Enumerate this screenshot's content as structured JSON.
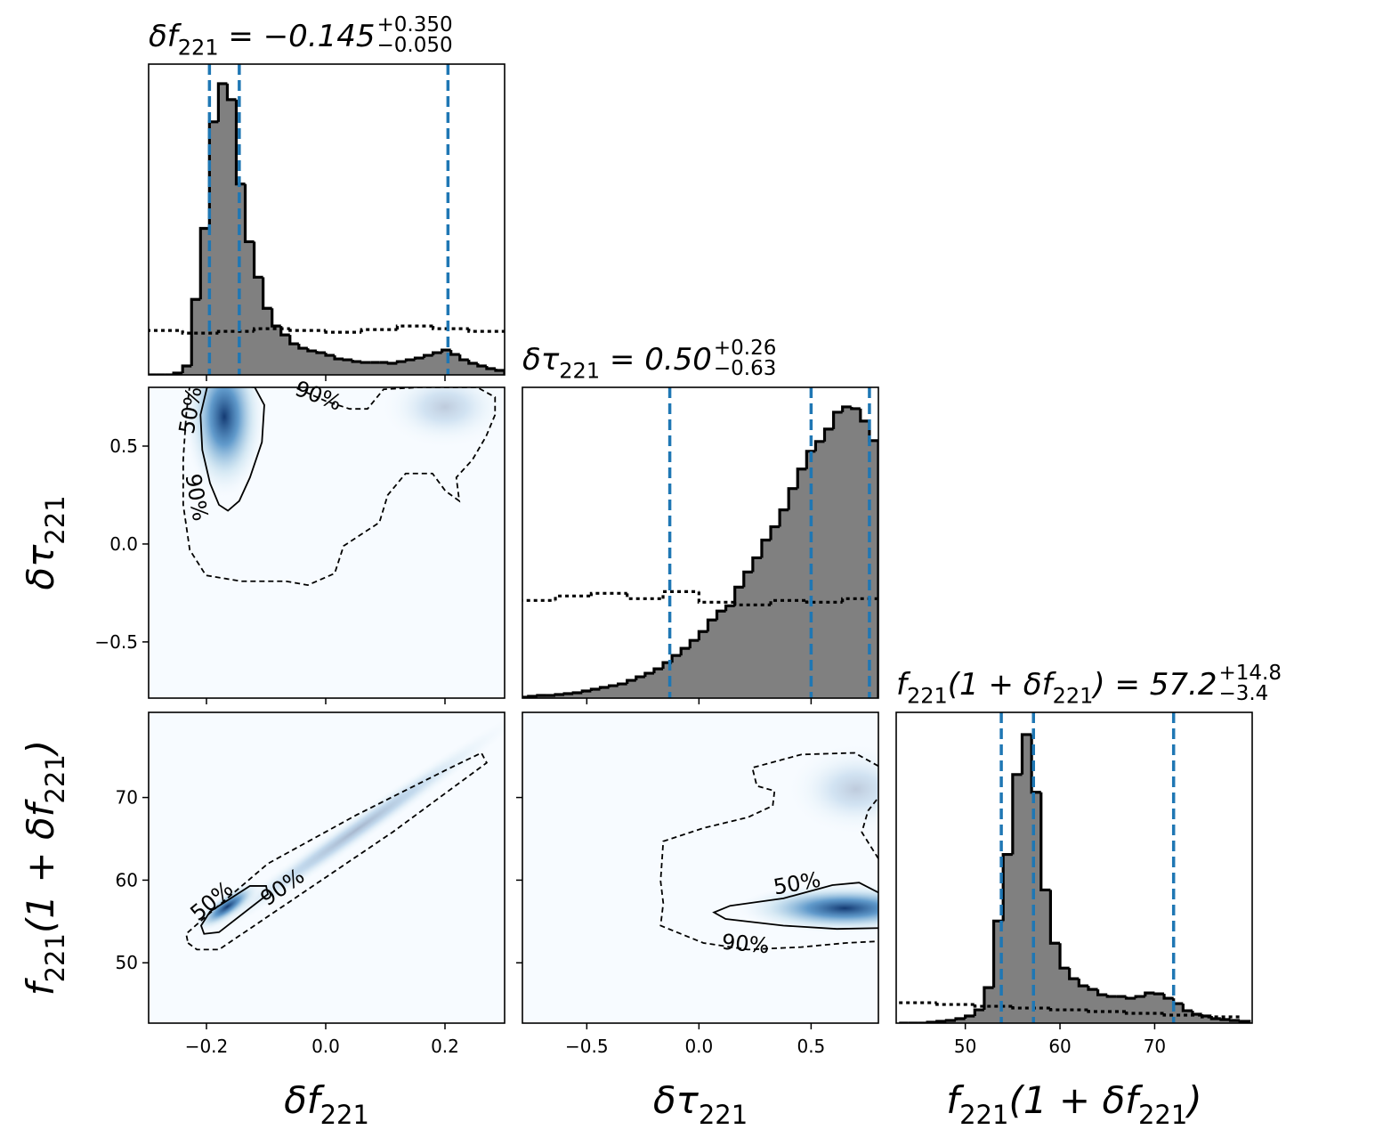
{
  "chart_data": {
    "type": "corner",
    "hist_color": "#808080",
    "quantile_color": "#1f77b4",
    "density_color": "#08519c",
    "hist_ylim": [
      0,
      350
    ],
    "parameters": [
      {
        "label": [
          "δf",
          "221"
        ],
        "title": {
          "parts": [
            "δf",
            "221",
            " = −0.145"
          ],
          "upper": "+0.350",
          "lower": "−0.050"
        },
        "lim": [
          -0.297,
          0.3
        ],
        "ticks": [
          {
            "value": -0.2,
            "label": "−0.2"
          },
          {
            "value": 0,
            "label": "0.0"
          },
          {
            "value": 0.2,
            "label": "0.2"
          }
        ],
        "quantiles": [
          -0.195,
          -0.145,
          0.205
        ],
        "hist": {
          "bins": [
            -0.3,
            -0.285,
            -0.27,
            -0.255,
            -0.24,
            -0.225,
            -0.21,
            -0.195,
            -0.18,
            -0.165,
            -0.15,
            -0.135,
            -0.12,
            -0.105,
            -0.09,
            -0.075,
            -0.06,
            -0.045,
            -0.03,
            -0.015,
            0,
            0.015,
            0.03,
            0.045,
            0.06,
            0.075,
            0.09,
            0.105,
            0.12,
            0.135,
            0.15,
            0.165,
            0.18,
            0.195,
            0.21,
            0.225,
            0.24,
            0.255,
            0.27,
            0.285,
            0.3
          ],
          "values": [
            0,
            0,
            0,
            2,
            10,
            85,
            165,
            285,
            328,
            310,
            215,
            150,
            110,
            75,
            55,
            45,
            35,
            30,
            27,
            25,
            22,
            18,
            17,
            15,
            14,
            14,
            14,
            13,
            15,
            17,
            19,
            22,
            25,
            28,
            23,
            17,
            13,
            10,
            7,
            5
          ]
        },
        "prior": {
          "bins": [
            -0.3,
            -0.24,
            -0.18,
            -0.12,
            -0.06,
            0,
            0.06,
            0.12,
            0.18,
            0.24,
            0.3
          ],
          "values": [
            50,
            47,
            49,
            52,
            50,
            48,
            51,
            55,
            52,
            49
          ]
        }
      },
      {
        "label": [
          "δτ",
          "221"
        ],
        "title": {
          "parts": [
            "δτ",
            "221",
            " = 0.50"
          ],
          "upper": "+0.26",
          "lower": "−0.63"
        },
        "lim": [
          -0.787,
          0.8
        ],
        "ticks": [
          {
            "value": -0.5,
            "label": "−0.5"
          },
          {
            "value": 0,
            "label": "0.0"
          },
          {
            "value": 0.5,
            "label": "0.5"
          }
        ],
        "quantiles": [
          -0.13,
          0.5,
          0.76
        ],
        "hist": {
          "bins": [
            -0.8,
            -0.76,
            -0.72,
            -0.68,
            -0.64,
            -0.6,
            -0.56,
            -0.52,
            -0.48,
            -0.44,
            -0.4,
            -0.36,
            -0.32,
            -0.28,
            -0.24,
            -0.2,
            -0.16,
            -0.12,
            -0.08,
            -0.04,
            0,
            0.04,
            0.08,
            0.12,
            0.16,
            0.2,
            0.24,
            0.28,
            0.32,
            0.36,
            0.4,
            0.44,
            0.48,
            0.52,
            0.56,
            0.6,
            0.64,
            0.68,
            0.72,
            0.76,
            0.8
          ],
          "values": [
            1,
            2,
            3,
            3,
            4,
            5,
            6,
            8,
            10,
            12,
            14,
            16,
            20,
            24,
            28,
            33,
            40,
            48,
            56,
            65,
            75,
            88,
            98,
            104,
            125,
            142,
            158,
            178,
            193,
            212,
            236,
            258,
            278,
            289,
            303,
            322,
            328,
            326,
            312,
            290
          ]
        },
        "prior": {
          "bins": [
            -0.8,
            -0.64,
            -0.48,
            -0.32,
            -0.16,
            0,
            0.16,
            0.32,
            0.48,
            0.64,
            0.8
          ],
          "values": [
            110,
            115,
            118,
            112,
            120,
            108,
            105,
            110,
            108,
            112
          ]
        }
      },
      {
        "label": [
          "f",
          "221",
          "(1 + δf",
          "221",
          ")"
        ],
        "title": {
          "parts": [
            "f",
            "221",
            "(1 + δf",
            "221",
            ") = 57.2"
          ],
          "upper": "+14.8",
          "lower": "−3.4"
        },
        "lim": [
          42.7,
          80.3
        ],
        "ticks": [
          50,
          60,
          70
        ],
        "quantiles": [
          53.8,
          57.2,
          72.0
        ],
        "hist": {
          "bins": [
            43,
            44,
            45,
            46,
            47,
            48,
            49,
            50,
            51,
            52,
            53,
            54,
            55,
            56,
            57,
            58,
            59,
            60,
            61,
            62,
            63,
            64,
            65,
            66,
            67,
            68,
            69,
            70,
            71,
            72,
            73,
            74,
            75,
            76,
            77,
            78,
            79,
            80
          ],
          "values": [
            0,
            0,
            0,
            1,
            2,
            3,
            5,
            8,
            15,
            40,
            115,
            190,
            280,
            325,
            260,
            150,
            90,
            62,
            50,
            42,
            38,
            32,
            30,
            30,
            28,
            30,
            34,
            33,
            28,
            22,
            14,
            10,
            8,
            5,
            4,
            3,
            2
          ]
        },
        "prior": {
          "bins": [
            43,
            47,
            51,
            55,
            59,
            63,
            67,
            71,
            75,
            79
          ],
          "values": [
            23,
            21,
            19,
            17,
            15,
            13,
            11,
            9,
            7
          ]
        }
      }
    ],
    "pairs": [
      {
        "peaks": [
          {
            "x": -0.17,
            "y": 0.65
          },
          {
            "x": 0.2,
            "y": 0.7
          }
        ],
        "contours": [
          {
            "labels": [
              "50%"
            ],
            "closed": true,
            "x": [
              -0.199,
              -0.157,
              -0.119,
              -0.103,
              -0.107,
              -0.127,
              -0.145,
              -0.164,
              -0.179,
              -0.194,
              -0.207,
              -0.21
            ],
            "y": [
              0.8,
              0.81,
              0.8,
              0.71,
              0.52,
              0.34,
              0.22,
              0.17,
              0.2,
              0.31,
              0.48,
              0.66
            ]
          },
          {
            "labels": [
              "90%",
              "90%"
            ],
            "closed": false,
            "x": [
              -0.228,
              -0.234,
              -0.239,
              -0.239,
              -0.228,
              -0.201,
              -0.142,
              -0.067,
              -0.03,
              0.015,
              0.03,
              0.06,
              0.09,
              0.104,
              0.134,
              0.179,
              0.201,
              0.224,
              0.219,
              0.246,
              0.269,
              0.284,
              0.284,
              0.254,
              0.157,
              0.097,
              0.07,
              0.04,
              0,
              -0.037,
              -0.06
            ],
            "y": [
              0.81,
              0.66,
              0.43,
              0.2,
              -0.03,
              -0.16,
              -0.19,
              -0.19,
              -0.21,
              -0.15,
              -0.01,
              0.05,
              0.11,
              0.25,
              0.36,
              0.36,
              0.27,
              0.22,
              0.34,
              0.43,
              0.55,
              0.66,
              0.75,
              0.8,
              0.8,
              0.79,
              0.69,
              0.69,
              0.73,
              0.78,
              0.81
            ]
          }
        ]
      },
      {
        "peaks": [
          {
            "x": -0.165,
            "y": 56.8
          },
          {
            "x": 0.05,
            "y": 66
          }
        ],
        "contours": [
          {
            "labels": [
              "50%"
            ],
            "closed": true,
            "x": [
              -0.204,
              -0.179,
              -0.097,
              -0.1,
              -0.127,
              -0.194,
              -0.209
            ],
            "y": [
              53.5,
              53.7,
              58.3,
              59.3,
              59.3,
              56.2,
              54.5
            ]
          },
          {
            "labels": [
              "90%"
            ],
            "closed": true,
            "x": [
              -0.231,
              -0.216,
              -0.179,
              -0.052,
              0.112,
              0.27,
              0.261,
              0.201,
              0.052,
              -0.097,
              -0.209,
              -0.234
            ],
            "y": [
              52.4,
              51.6,
              51.6,
              57.8,
              65.8,
              74.2,
              75.4,
              73.3,
              67.9,
              62.0,
              55.1,
              53.5
            ]
          }
        ]
      },
      {
        "peaks": [
          {
            "x": 0.65,
            "y": 56.6
          },
          {
            "x": 0.7,
            "y": 71
          }
        ],
        "contours": [
          {
            "labels": [
              "50%"
            ],
            "closed": false,
            "x": [
              0.8,
              0.714,
              0.595,
              0.377,
              0.139,
              0.067,
              0.119,
              0.377,
              0.615,
              0.8
            ],
            "y": [
              58.5,
              59.7,
              59.4,
              57.8,
              56.9,
              56.1,
              55.3,
              54.5,
              54.1,
              54.2
            ]
          },
          {
            "labels": [
              "90%"
            ],
            "closed": false,
            "x": [
              0.8,
              0.694,
              0.456,
              0.238,
              0.258,
              0.337,
              0.329,
              0.218,
              0.02,
              -0.159,
              -0.171,
              -0.159,
              -0.171,
              0.02,
              0.218,
              0.456,
              0.655,
              0.8,
              null,
              0.8,
              0.726,
              0.754,
              0.8
            ],
            "y": [
              73.8,
              75.4,
              75.2,
              73.6,
              71.4,
              70.8,
              69.0,
              67.6,
              66.3,
              64.7,
              59.9,
              57.2,
              54.5,
              52.4,
              51.6,
              51.9,
              52.4,
              52.6,
              null,
              62.6,
              65.8,
              68.4,
              70.0
            ]
          }
        ]
      }
    ]
  }
}
